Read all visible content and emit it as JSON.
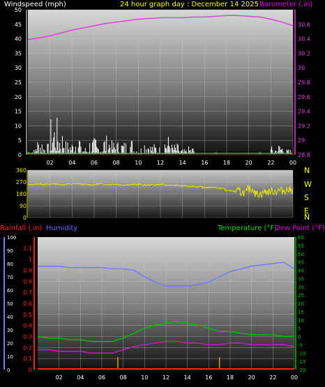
{
  "title": "24 hour graph day : December 14 2025",
  "colors": {
    "wind": "#ffffff",
    "gust_base": "#00c000",
    "barometer": "#e040e0",
    "direction": "#e6e600",
    "humidity": "#7878ff",
    "temperature": "#00c000",
    "dewpoint": "#c020c0",
    "rain": "#ff2020",
    "rain_ticks": "#d0a000",
    "label_windspeed": "#ffffff",
    "label_title": "#ffff00",
    "label_barometer": "#e000e0",
    "label_rainfall": "#ff2020",
    "label_humidity": "#6868ff",
    "label_temperature": "#00e000",
    "label_dewpoint": "#e000e0",
    "label_nwsen": "#ffff00"
  },
  "chart_data": [
    {
      "type": "line",
      "name": "wind-barometer",
      "left_label": "Windspeed (mph)",
      "right_label": "Barometer (.in)",
      "x_ticks": [
        "02",
        "04",
        "06",
        "08",
        "10",
        "12",
        "14",
        "16",
        "18",
        "20",
        "22",
        "00"
      ],
      "y_left_ticks": [
        "0",
        "5",
        "10",
        "15",
        "20",
        "25",
        "30",
        "35",
        "40",
        "45",
        "50"
      ],
      "y_left_lim": [
        0,
        50
      ],
      "y_right_ticks": [
        "28.8",
        "29",
        "29.2",
        "29.4",
        "29.6",
        "29.8",
        "30",
        "30.2",
        "30.4",
        "30.6"
      ],
      "y_right_lim": [
        28.8,
        30.8
      ],
      "barometer": [
        30.39,
        30.41,
        30.44,
        30.48,
        30.52,
        30.55,
        30.58,
        30.61,
        30.63,
        30.65,
        30.67,
        30.68,
        30.69,
        30.69,
        30.69,
        30.7,
        30.7,
        30.71,
        30.72,
        30.72,
        30.71,
        30.7,
        30.67,
        30.63,
        30.58
      ],
      "wind_peaks": [
        2,
        6,
        4,
        13,
        9,
        5,
        8,
        3,
        6,
        4,
        7,
        5,
        5,
        6,
        3,
        6,
        4,
        3,
        7,
        4,
        2,
        3,
        0,
        0,
        1,
        0,
        0,
        0,
        0,
        0,
        1,
        0,
        3,
        4,
        2
      ]
    },
    {
      "type": "line",
      "name": "wind-direction",
      "y_ticks": [
        "360",
        "270",
        "180",
        "90",
        "0"
      ],
      "y_lim": [
        0,
        360
      ],
      "compass": [
        "N",
        "W",
        "S",
        "E",
        "N"
      ],
      "direction": [
        250,
        255,
        252,
        256,
        250,
        254,
        257,
        252,
        249,
        255,
        251,
        253,
        248,
        250,
        252,
        247,
        249,
        251,
        246,
        244,
        240,
        238,
        234,
        228,
        230,
        222,
        205,
        200,
        190,
        215,
        180,
        195,
        200,
        205,
        210
      ]
    },
    {
      "type": "line",
      "name": "temperature-humidity",
      "left_labels": [
        "Rainfall (.in)",
        "Humidity"
      ],
      "right_labels": [
        "Temperature (°F)",
        "Dew Point (°F)"
      ],
      "x_ticks": [
        "02",
        "04",
        "06",
        "08",
        "10",
        "12",
        "14",
        "16",
        "18",
        "20",
        "22",
        "00"
      ],
      "humidity_ticks": [
        "0",
        "10",
        "20",
        "30",
        "40",
        "50",
        "60",
        "70",
        "80",
        "90",
        "100"
      ],
      "humidity_lim": [
        0,
        100
      ],
      "rain_ticks": [
        "0",
        "0.1",
        "0.2",
        "0.3",
        "0.4",
        "0.5",
        "0.6",
        "0.7",
        "0.8",
        "0.9",
        "1",
        "1.1"
      ],
      "rain_lim": [
        0,
        1.2
      ],
      "temp_ticks": [
        "-20",
        "-15",
        "-10",
        "-5",
        "0",
        "5",
        "10",
        "15",
        "20",
        "25",
        "30",
        "35",
        "40",
        "45",
        "50",
        "55",
        "60"
      ],
      "temp_lim": [
        -20,
        60
      ],
      "x_hours": [
        0,
        1,
        2,
        3,
        4,
        5,
        6,
        7,
        8,
        9,
        10,
        11,
        12,
        13,
        14,
        15,
        16,
        17,
        18,
        19,
        20,
        21,
        22,
        23,
        24
      ],
      "humidity": [
        78,
        78,
        78,
        77,
        77,
        77,
        77,
        76,
        76,
        75,
        70,
        66,
        63,
        63,
        63,
        64,
        66,
        70,
        74,
        76,
        78,
        79,
        80,
        81,
        76
      ],
      "temperature": [
        0,
        -1,
        -1,
        -2,
        -2,
        -3,
        -3,
        -3,
        -1,
        2,
        5,
        7,
        8,
        9,
        8,
        7,
        5,
        3,
        3,
        2,
        1,
        1,
        1,
        0,
        0
      ],
      "dewpoint": [
        -8,
        -8,
        -9,
        -9,
        -9,
        -10,
        -10,
        -10,
        -8,
        -6,
        -5,
        -4,
        -3,
        -3,
        -4,
        -4,
        -5,
        -5,
        -4,
        -4,
        -5,
        -5,
        -5,
        -5,
        -6
      ],
      "rainfall": 0,
      "rain_tick_hours": [
        7.5,
        17
      ]
    }
  ]
}
